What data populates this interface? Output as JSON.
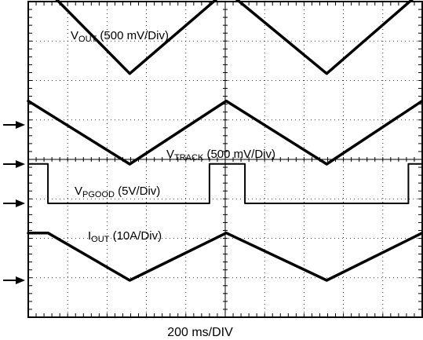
{
  "chart_data": {
    "type": "line",
    "xlabel": "200 ms/DIV",
    "x_unit": "ms",
    "x_per_div_ms": 200,
    "xlim_ms": [
      0,
      2000
    ],
    "grid": true,
    "grid_divisions": {
      "x": 10,
      "y": 8
    },
    "channel_markers": [
      "ch1",
      "ch2",
      "ch3",
      "ch4"
    ],
    "series": [
      {
        "name": "VOUT",
        "label_main": "V",
        "label_sub": "OUT",
        "label_rest": " (500 mV/Div)",
        "scale": "500 mV/Div",
        "x_ms": [
          0,
          100,
          515,
          1005,
          1515,
          2000
        ],
        "y_div": [
          3.4,
          3.4,
          1.3,
          3.4,
          1.3,
          3.4
        ]
      },
      {
        "name": "VTRACK",
        "label_main": "V",
        "label_sub": "TRACK",
        "label_rest": " (500 mV/Div)",
        "scale": "500 mV/Div",
        "x_ms": [
          0,
          515,
          1005,
          1515,
          2000
        ],
        "y_div": [
          1.6,
          0.0,
          1.6,
          0.0,
          1.6
        ]
      },
      {
        "name": "VPGOOD",
        "label_main": "V",
        "label_sub": "PGOOD",
        "label_rest": " (5V/Div)",
        "scale": "5V/Div",
        "x_ms": [
          0,
          100,
          100,
          920,
          920,
          1100,
          1100,
          1930,
          1930,
          2000
        ],
        "y_div": [
          1.0,
          1.0,
          0.0,
          0.0,
          1.0,
          1.0,
          0.0,
          0.0,
          1.0,
          1.0
        ]
      },
      {
        "name": "IOUT",
        "label_main": "I",
        "label_sub": "OUT",
        "label_rest": " (10A/Div)",
        "scale": "10A/Div",
        "x_ms": [
          0,
          100,
          515,
          1005,
          1515,
          2000
        ],
        "y_div": [
          1.2,
          1.2,
          0.0,
          1.2,
          0.0,
          1.2
        ]
      }
    ]
  }
}
